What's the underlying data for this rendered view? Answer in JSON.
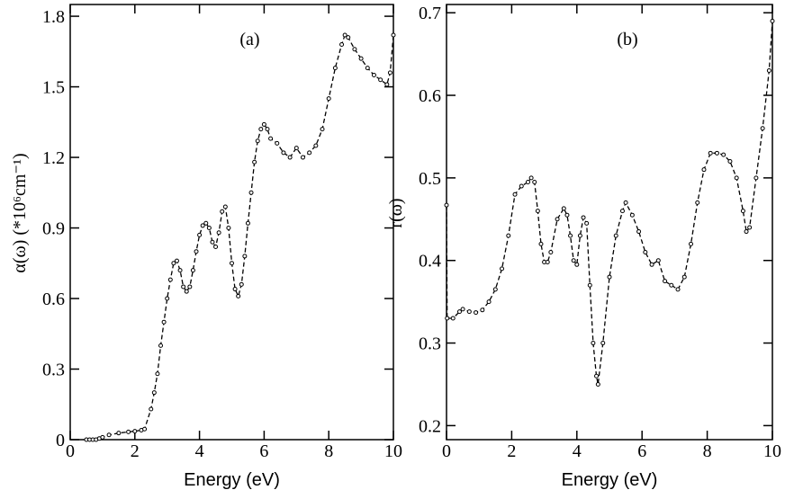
{
  "chart_data": [
    {
      "type": "line",
      "annotation": "(a)",
      "xlabel": "Energy (eV)",
      "ylabel": "α(ω) (*10⁶cm⁻¹)",
      "color": "#000000",
      "line_style": "dashed",
      "x": [
        0.5,
        0.6,
        0.7,
        0.8,
        0.9,
        1.0,
        1.2,
        1.5,
        1.8,
        2.0,
        2.2,
        2.3,
        2.5,
        2.6,
        2.7,
        2.8,
        2.9,
        3.0,
        3.1,
        3.2,
        3.3,
        3.4,
        3.5,
        3.6,
        3.7,
        3.8,
        3.9,
        4.0,
        4.1,
        4.2,
        4.3,
        4.4,
        4.5,
        4.6,
        4.7,
        4.8,
        4.9,
        5.0,
        5.1,
        5.2,
        5.3,
        5.4,
        5.5,
        5.6,
        5.7,
        5.8,
        5.9,
        6.0,
        6.1,
        6.2,
        6.4,
        6.6,
        6.8,
        7.0,
        7.2,
        7.4,
        7.6,
        7.8,
        8.0,
        8.2,
        8.4,
        8.5,
        8.6,
        8.8,
        9.0,
        9.2,
        9.4,
        9.6,
        9.8,
        9.9,
        10.0
      ],
      "values": [
        0,
        0,
        0,
        0,
        0.005,
        0.01,
        0.02,
        0.028,
        0.033,
        0.036,
        0.04,
        0.045,
        0.13,
        0.2,
        0.28,
        0.4,
        0.5,
        0.6,
        0.68,
        0.75,
        0.76,
        0.72,
        0.65,
        0.63,
        0.65,
        0.72,
        0.8,
        0.87,
        0.91,
        0.92,
        0.9,
        0.84,
        0.82,
        0.88,
        0.97,
        0.99,
        0.9,
        0.75,
        0.64,
        0.61,
        0.66,
        0.78,
        0.92,
        1.05,
        1.18,
        1.27,
        1.32,
        1.34,
        1.32,
        1.28,
        1.26,
        1.22,
        1.2,
        1.24,
        1.2,
        1.22,
        1.25,
        1.32,
        1.45,
        1.58,
        1.68,
        1.72,
        1.71,
        1.66,
        1.62,
        1.58,
        1.55,
        1.53,
        1.51,
        1.56,
        1.72
      ],
      "xlim": [
        0,
        10
      ],
      "xticks": [
        0,
        2,
        4,
        6,
        8,
        10
      ],
      "ylim": [
        0,
        1.85
      ],
      "yticks": [
        0,
        0.3,
        0.6,
        0.9,
        1.2,
        1.5,
        1.8
      ]
    },
    {
      "type": "line",
      "annotation": "(b)",
      "xlabel": "Energy (eV)",
      "ylabel": "r(ω)",
      "color": "#000000",
      "line_style": "dashed",
      "x": [
        0,
        0.02,
        0.2,
        0.4,
        0.5,
        0.7,
        0.9,
        1.1,
        1.3,
        1.5,
        1.7,
        1.9,
        2.1,
        2.3,
        2.5,
        2.6,
        2.7,
        2.8,
        2.9,
        3.0,
        3.1,
        3.2,
        3.4,
        3.6,
        3.7,
        3.8,
        3.9,
        4.0,
        4.1,
        4.2,
        4.3,
        4.4,
        4.5,
        4.6,
        4.65,
        4.8,
        5.0,
        5.2,
        5.4,
        5.5,
        5.7,
        5.9,
        6.1,
        6.3,
        6.5,
        6.7,
        6.9,
        7.1,
        7.3,
        7.5,
        7.7,
        7.9,
        8.1,
        8.3,
        8.5,
        8.7,
        8.9,
        9.1,
        9.2,
        9.3,
        9.5,
        9.7,
        9.9,
        10.0
      ],
      "values": [
        0.467,
        0.33,
        0.33,
        0.338,
        0.341,
        0.338,
        0.337,
        0.34,
        0.35,
        0.365,
        0.39,
        0.43,
        0.48,
        0.49,
        0.495,
        0.5,
        0.495,
        0.46,
        0.42,
        0.398,
        0.398,
        0.41,
        0.45,
        0.463,
        0.455,
        0.43,
        0.4,
        0.395,
        0.43,
        0.452,
        0.445,
        0.37,
        0.3,
        0.26,
        0.25,
        0.3,
        0.38,
        0.43,
        0.46,
        0.47,
        0.455,
        0.435,
        0.41,
        0.395,
        0.4,
        0.375,
        0.37,
        0.365,
        0.38,
        0.42,
        0.47,
        0.51,
        0.53,
        0.53,
        0.528,
        0.52,
        0.5,
        0.46,
        0.435,
        0.44,
        0.5,
        0.56,
        0.63,
        0.69
      ],
      "xlim": [
        0,
        10
      ],
      "xticks": [
        0,
        2,
        4,
        6,
        8,
        10
      ],
      "ylim": [
        0.183,
        0.71
      ],
      "yticks": [
        0.2,
        0.3,
        0.4,
        0.5,
        0.6,
        0.7
      ]
    }
  ]
}
